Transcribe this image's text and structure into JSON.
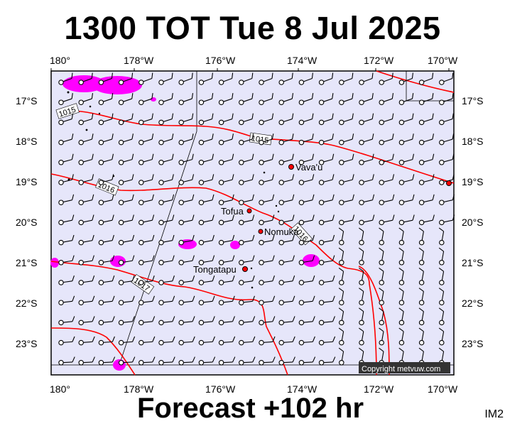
{
  "title": "1300 TOT Tue 8 Jul 2025",
  "footer": "Forecast +102 hr",
  "image_code": "IM2",
  "copyright": "Copyright metvuw.com",
  "lon_ticks_top": [
    "180°",
    "178°W",
    "176°W",
    "174°W",
    "172°W",
    "170°W"
  ],
  "lon_ticks_bottom": [
    "180°",
    "178°W",
    "176°W",
    "174°W",
    "172°W",
    "170°W"
  ],
  "lat_ticks_left": [
    "17°S",
    "18°S",
    "19°S",
    "20°S",
    "21°S",
    "22°S",
    "23°S"
  ],
  "lat_ticks_right": [
    "17°S",
    "18°S",
    "19°S",
    "20°S",
    "21°S",
    "22°S",
    "23°S"
  ],
  "places": [
    {
      "name": "Vava'u"
    },
    {
      "name": "Tofua"
    },
    {
      "name": "Nomuka"
    },
    {
      "name": "Tongatapu"
    }
  ],
  "isobars": [
    {
      "label": "1015"
    },
    {
      "label": "1015"
    },
    {
      "label": "1016"
    },
    {
      "label": "1016"
    },
    {
      "label": "1017"
    }
  ],
  "colors": {
    "ocean": "#e6e6fa",
    "isobar": "#ff0000",
    "rain": "#ff00ff",
    "frame": "#000000"
  }
}
